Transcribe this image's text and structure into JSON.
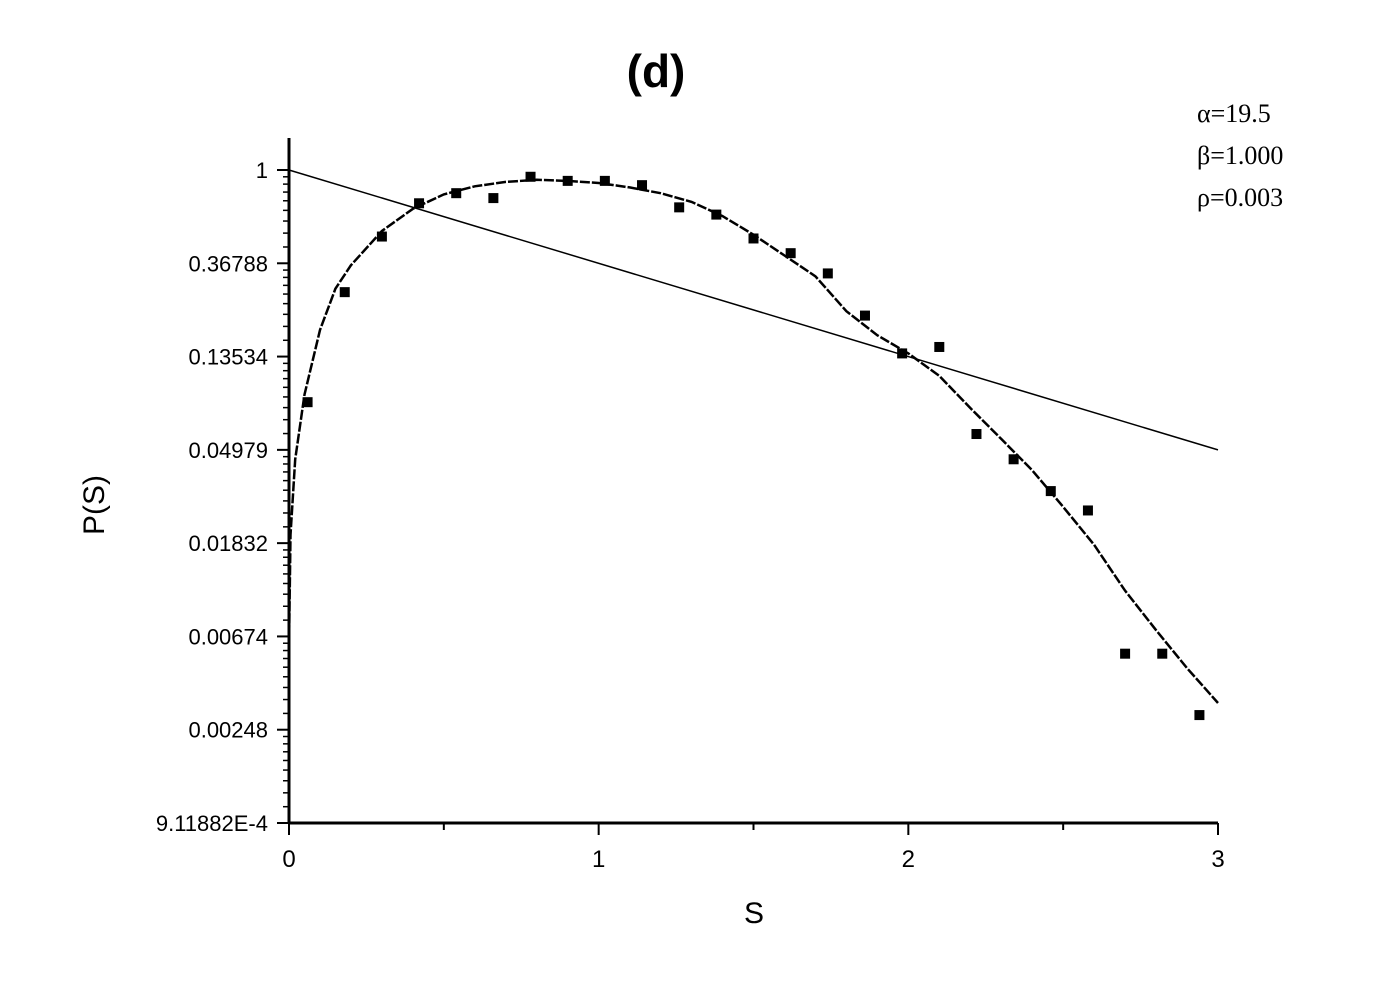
{
  "chart_data": {
    "type": "scatter",
    "title": "(d)",
    "xlabel": "S",
    "ylabel": "P(S)",
    "xlim": [
      0,
      3
    ],
    "ylim": [
      0.000911882,
      1
    ],
    "y_scale": "log",
    "x_ticks": [
      "0",
      "1",
      "2",
      "3"
    ],
    "y_ticks": [
      "1",
      "0.36788",
      "0.13534",
      "0.04979",
      "0.01832",
      "0.00674",
      "0.00248",
      "9.11882E-4"
    ],
    "annotations": [
      "α=19.5",
      "β=1.000",
      "ρ=0.003"
    ],
    "grid": false,
    "series": [
      {
        "kind": "points",
        "marker": "square",
        "x": [
          0.06,
          0.18,
          0.3,
          0.42,
          0.54,
          0.66,
          0.78,
          0.9,
          1.02,
          1.14,
          1.26,
          1.38,
          1.5,
          1.62,
          1.74,
          1.86,
          1.98,
          2.1,
          2.22,
          2.34,
          2.46,
          2.58,
          2.7,
          2.82,
          2.94
        ],
        "y": [
          0.083,
          0.27,
          0.49,
          0.7,
          0.78,
          0.74,
          0.93,
          0.89,
          0.89,
          0.85,
          0.67,
          0.62,
          0.48,
          0.41,
          0.33,
          0.21,
          0.14,
          0.15,
          0.059,
          0.045,
          0.032,
          0.026,
          0.0056,
          0.0056,
          0.0029
        ]
      },
      {
        "kind": "curve",
        "style": "dashed",
        "x": [
          0.0001,
          0.005,
          0.02,
          0.05,
          0.1,
          0.15,
          0.2,
          0.3,
          0.4,
          0.5,
          0.6,
          0.7,
          0.8,
          0.9,
          1.0,
          1.1,
          1.2,
          1.3,
          1.4,
          1.5,
          1.6,
          1.7,
          1.8,
          1.9,
          2.0,
          2.1,
          2.2,
          2.3,
          2.4,
          2.5,
          2.6,
          2.7,
          2.8,
          2.9,
          3.0
        ],
        "y": [
          0.006,
          0.02,
          0.045,
          0.09,
          0.18,
          0.28,
          0.36,
          0.52,
          0.66,
          0.77,
          0.84,
          0.88,
          0.9,
          0.89,
          0.87,
          0.83,
          0.78,
          0.71,
          0.61,
          0.5,
          0.4,
          0.32,
          0.22,
          0.17,
          0.14,
          0.11,
          0.078,
          0.056,
          0.04,
          0.027,
          0.018,
          0.011,
          0.0072,
          0.0048,
          0.0033
        ]
      },
      {
        "kind": "curve",
        "style": "solid",
        "x": [
          0,
          3
        ],
        "y": [
          1,
          0.04979
        ]
      }
    ]
  }
}
